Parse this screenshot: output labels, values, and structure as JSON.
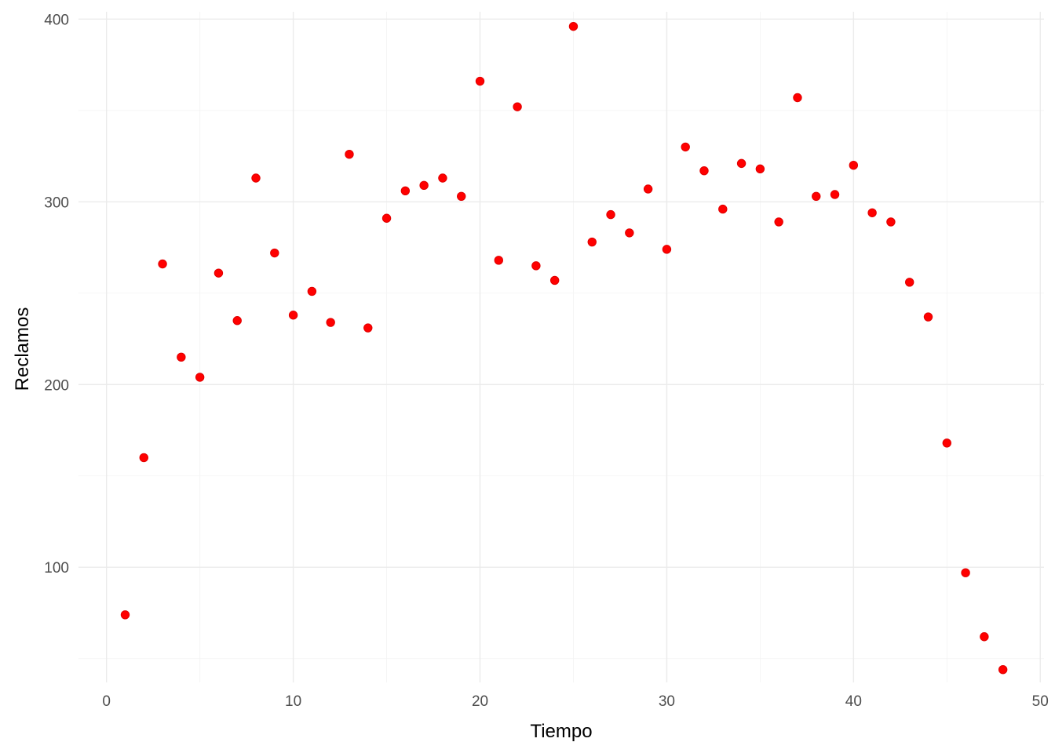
{
  "chart_data": {
    "type": "scatter",
    "title": "",
    "xlabel": "Tiempo",
    "ylabel": "Reclamos",
    "xlim": [
      -1.5,
      50.2
    ],
    "ylim": [
      37,
      404
    ],
    "x_ticks": [
      0,
      10,
      20,
      30,
      40,
      50
    ],
    "y_ticks": [
      100,
      200,
      300,
      400
    ],
    "x_tick_labels": [
      "0",
      "10",
      "20",
      "30",
      "40",
      "50"
    ],
    "y_tick_labels": [
      "100",
      "200",
      "300",
      "400"
    ],
    "grid": true,
    "legend": "none",
    "point_color": "#ff0000",
    "background": "#ffffff",
    "series": [
      {
        "x": [
          1,
          2,
          3,
          4,
          5,
          6,
          7,
          8,
          9,
          10,
          11,
          12,
          13,
          14,
          15,
          16,
          17,
          18,
          19,
          20,
          21,
          22,
          23,
          24,
          25,
          26,
          27,
          28,
          29,
          30,
          31,
          32,
          33,
          34,
          35,
          36,
          37,
          38,
          39,
          40,
          41,
          42,
          43,
          44,
          45,
          46,
          47,
          48
        ],
        "y": [
          74,
          160,
          266,
          215,
          204,
          261,
          235,
          313,
          272,
          238,
          251,
          234,
          326,
          231,
          291,
          306,
          309,
          313,
          303,
          366,
          268,
          352,
          265,
          257,
          396,
          278,
          293,
          283,
          307,
          274,
          330,
          317,
          296,
          321,
          318,
          289,
          357,
          303,
          304,
          320,
          294,
          289,
          256,
          237,
          168,
          97,
          62,
          44
        ]
      }
    ]
  }
}
